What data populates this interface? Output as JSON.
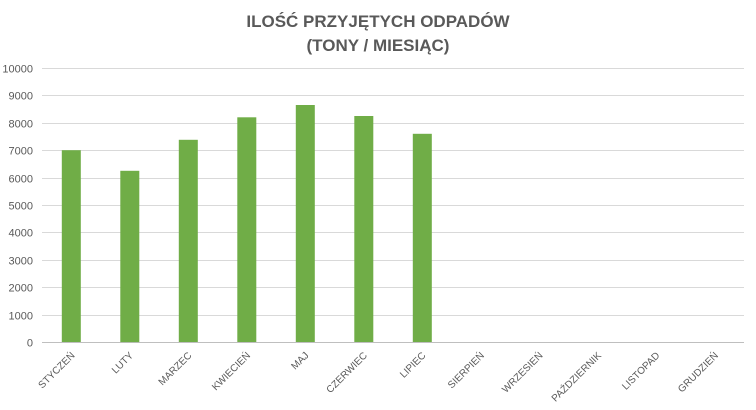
{
  "chart_data": {
    "type": "bar",
    "title_line1": "ILOŚĆ PRZYJĘTYCH ODPADÓW",
    "title_line2": "(TONY / MIESIĄC)",
    "categories": [
      "STYCZEŃ",
      "LUTY",
      "MARZEC",
      "KWIECIEŃ",
      "MAJ",
      "CZERWIEC",
      "LIPIEC",
      "SIERPIEŃ",
      "WRZESIEŃ",
      "PAŹDZIERNIK",
      "LISTOPAD",
      "GRUDZIEŃ"
    ],
    "values": [
      7000,
      6250,
      7380,
      8200,
      8650,
      8250,
      7600,
      null,
      null,
      null,
      null,
      null
    ],
    "ylim": [
      0,
      10000
    ],
    "yticks": [
      0,
      1000,
      2000,
      3000,
      4000,
      5000,
      6000,
      7000,
      8000,
      9000,
      10000
    ],
    "bar_color": "#70AD47",
    "grid": true,
    "legend": "none"
  }
}
